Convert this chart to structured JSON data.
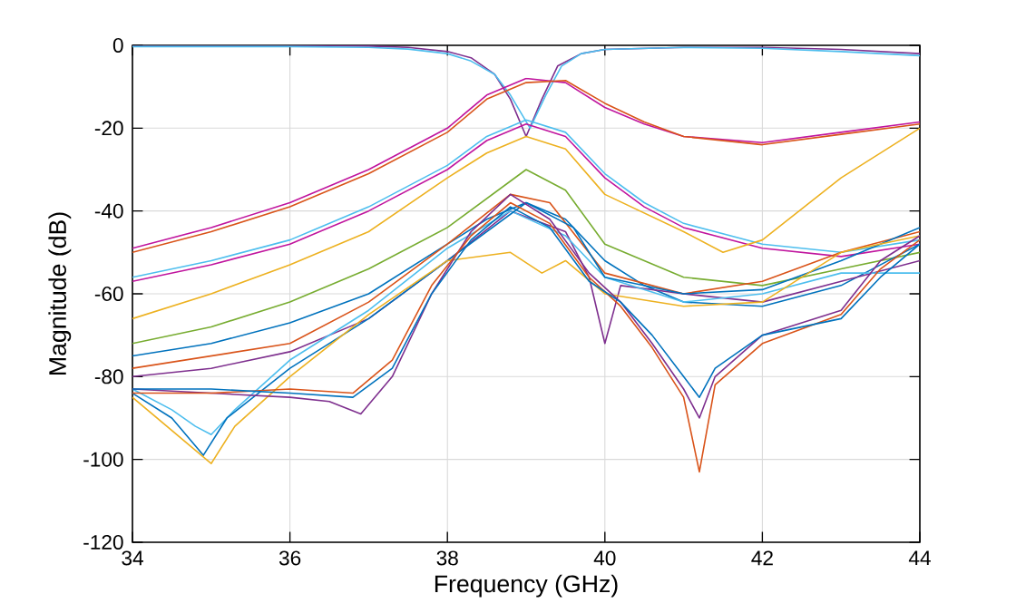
{
  "chart_data": {
    "type": "line",
    "xlabel": "Frequency (GHz)",
    "ylabel": "Magnitude (dB)",
    "xlim": [
      34,
      44
    ],
    "xticks": [
      34,
      36,
      38,
      40,
      42,
      44
    ],
    "ylim": [
      -120,
      0
    ],
    "yticks": [
      -120,
      -100,
      -80,
      -60,
      -40,
      -20,
      0
    ],
    "grid": true,
    "line_style": "solid",
    "series": [
      {
        "color": "#7e2f8e",
        "x": [
          34,
          36,
          37,
          37.5,
          38,
          38.3,
          38.6,
          38.8,
          39,
          39.2,
          39.4,
          39.7,
          40,
          41,
          42,
          43,
          44
        ],
        "values": [
          0,
          0,
          -0.2,
          -0.5,
          -1.5,
          -3,
          -7,
          -13,
          -22,
          -13,
          -5,
          -2,
          -1,
          -0.5,
          -0.5,
          -1,
          -2
        ]
      },
      {
        "color": "#4dbeee",
        "x": [
          34,
          36,
          37,
          37.5,
          38,
          38.3,
          38.6,
          38.8,
          39.05,
          39.25,
          39.45,
          39.7,
          40,
          41,
          42,
          43,
          44
        ],
        "values": [
          -0.3,
          -0.3,
          -0.5,
          -0.9,
          -2,
          -3.8,
          -7,
          -12,
          -20,
          -12,
          -5,
          -2,
          -1,
          -0.5,
          -0.7,
          -1.5,
          -2.5
        ]
      },
      {
        "color": "#c0159e",
        "x": [
          34,
          35,
          36,
          37,
          37.5,
          38,
          38.5,
          39,
          39.5,
          40,
          40.5,
          41,
          42,
          43,
          44
        ],
        "values": [
          -49,
          -44,
          -38,
          -30,
          -25,
          -20,
          -12,
          -8,
          -9,
          -15,
          -19,
          -22,
          -23.5,
          -21,
          -18.5
        ]
      },
      {
        "color": "#d95319",
        "x": [
          34,
          35,
          36,
          37,
          37.5,
          38,
          38.5,
          39,
          39.5,
          40,
          40.5,
          41,
          42,
          43,
          44
        ],
        "values": [
          -50,
          -45,
          -39,
          -31,
          -26,
          -21,
          -13,
          -9,
          -8.5,
          -14,
          -18.5,
          -22,
          -24,
          -21.5,
          -19
        ]
      },
      {
        "color": "#4dbeee",
        "x": [
          34,
          35,
          36,
          37,
          38,
          38.5,
          39,
          39.5,
          40,
          40.5,
          41,
          42,
          43,
          44
        ],
        "values": [
          -56,
          -52,
          -47,
          -39,
          -29,
          -22,
          -18,
          -21,
          -31,
          -38,
          -43,
          -48,
          -50,
          -47
        ]
      },
      {
        "color": "#c0159e",
        "x": [
          34,
          35,
          36,
          37,
          38,
          38.5,
          39,
          39.5,
          40,
          40.5,
          41,
          42,
          43,
          44
        ],
        "values": [
          -57,
          -53,
          -48,
          -40,
          -30,
          -23,
          -19,
          -22,
          -32,
          -39,
          -44,
          -49,
          -51,
          -48
        ]
      },
      {
        "color": "#edb120",
        "x": [
          34,
          35,
          36,
          37,
          38,
          38.5,
          39,
          39.5,
          40,
          41,
          41.5,
          42,
          43,
          44
        ],
        "values": [
          -66,
          -60,
          -53,
          -45,
          -32,
          -26,
          -22,
          -25,
          -36,
          -45,
          -50,
          -47,
          -32,
          -20
        ]
      },
      {
        "color": "#77ac30",
        "x": [
          34,
          35,
          36,
          37,
          38,
          39,
          39.5,
          40,
          41,
          42,
          43,
          44
        ],
        "values": [
          -72,
          -68,
          -62,
          -54,
          -44,
          -30,
          -35,
          -48,
          -56,
          -58,
          -54,
          -50
        ]
      },
      {
        "color": "#0072bd",
        "x": [
          34,
          35,
          36,
          37,
          38,
          38.5,
          39,
          39.5,
          40,
          40.5,
          41,
          42,
          43,
          44
        ],
        "values": [
          -75,
          -72,
          -67,
          -60,
          -48,
          -42,
          -38,
          -42,
          -52,
          -58,
          -62,
          -63,
          -58,
          -48
        ]
      },
      {
        "color": "#d95319",
        "x": [
          34,
          36,
          37,
          38,
          38.8,
          39.3,
          40,
          41,
          42,
          43,
          44
        ],
        "values": [
          -78,
          -72,
          -62,
          -48,
          -36,
          -38,
          -55,
          -60,
          -57,
          -50,
          -45
        ]
      },
      {
        "color": "#7e2f8e",
        "x": [
          34,
          35,
          36,
          37,
          38,
          38.8,
          39.5,
          39.8,
          40,
          40.2,
          41,
          42,
          43,
          44
        ],
        "values": [
          -80,
          -78,
          -74,
          -66,
          -52,
          -40,
          -45,
          -56,
          -72,
          -58,
          -60,
          -62,
          -57,
          -52
        ]
      },
      {
        "color": "#4dbeee",
        "x": [
          34,
          34.5,
          34.8,
          35,
          35.3,
          36,
          37,
          38,
          38.8,
          39.5,
          40,
          41,
          42,
          43,
          44
        ],
        "values": [
          -83,
          -88,
          -92,
          -94,
          -88,
          -76,
          -64,
          -49,
          -40,
          -46,
          -56,
          -62,
          -60,
          -55,
          -55
        ]
      },
      {
        "color": "#0072bd",
        "x": [
          34,
          34.5,
          34.9,
          35.2,
          36,
          37,
          38,
          39,
          39.6,
          40,
          41,
          42,
          43,
          44
        ],
        "values": [
          -84,
          -90,
          -99,
          -90,
          -78,
          -66,
          -52,
          -38,
          -44,
          -56,
          -60,
          -59,
          -52,
          -44
        ]
      },
      {
        "color": "#edb120",
        "x": [
          34,
          35,
          35.3,
          36,
          37,
          38,
          38.8,
          39.2,
          39.5,
          40,
          41,
          42,
          43,
          44
        ],
        "values": [
          -85,
          -101,
          -92,
          -80,
          -65,
          -52,
          -50,
          -55,
          -52,
          -60,
          -63,
          -62,
          -50,
          -46
        ]
      },
      {
        "color": "#7e2f8e",
        "x": [
          34,
          35,
          36,
          36.5,
          36.9,
          37.3,
          37.8,
          38.3,
          38.8,
          39.3,
          39.8,
          40.2,
          40.6,
          41,
          41.2,
          41.4,
          42,
          43,
          43.5,
          44
        ],
        "values": [
          -83,
          -84,
          -85,
          -86,
          -89,
          -80,
          -60,
          -45,
          -36,
          -42,
          -55,
          -62,
          -72,
          -83,
          -90,
          -80,
          -70,
          -64,
          -52,
          -46
        ]
      },
      {
        "color": "#d95319",
        "x": [
          34,
          35,
          36,
          36.8,
          37.3,
          37.8,
          38.3,
          38.8,
          39.3,
          39.8,
          40.2,
          40.6,
          41,
          41.2,
          41.4,
          42,
          43,
          43.5,
          44
        ],
        "values": [
          -84,
          -84,
          -83,
          -84,
          -76,
          -58,
          -46,
          -38,
          -43,
          -56,
          -63,
          -73,
          -85,
          -103,
          -82,
          -72,
          -65,
          -54,
          -47
        ]
      },
      {
        "color": "#0072bd",
        "x": [
          34,
          35,
          36,
          36.8,
          37.3,
          37.8,
          38.3,
          38.8,
          39.3,
          39.8,
          40.2,
          40.6,
          41,
          41.2,
          41.4,
          42,
          43,
          43.5,
          44
        ],
        "values": [
          -83,
          -83,
          -84,
          -85,
          -78,
          -60,
          -47,
          -39,
          -44,
          -57,
          -62,
          -70,
          -80,
          -85,
          -78,
          -70,
          -66,
          -56,
          -48
        ]
      }
    ]
  }
}
